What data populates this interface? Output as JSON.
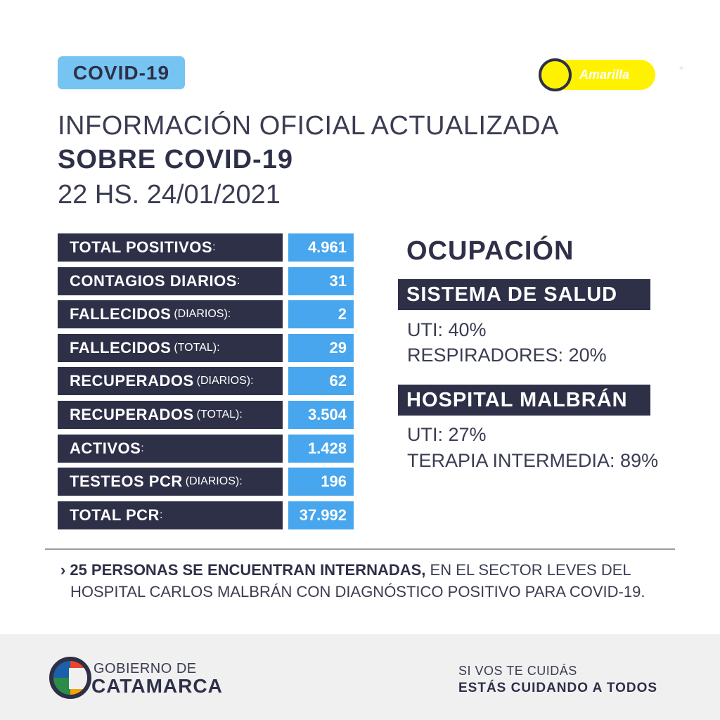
{
  "header": {
    "tag": "COVID-19",
    "phase_label": "Amarilla",
    "phase_color": "#fff200",
    "title_line1": "INFORMACIÓN OFICIAL ACTUALIZADA",
    "title_line2": "SOBRE COVID-19",
    "title_line3": "22 HS. 24/01/2021"
  },
  "stats": [
    {
      "label": "TOTAL POSITIVOS",
      "qualifier": "",
      "value": "4.961"
    },
    {
      "label": "CONTAGIOS DIARIOS",
      "qualifier": "",
      "value": "31"
    },
    {
      "label": "FALLECIDOS",
      "qualifier": "(DIARIOS)",
      "value": "2"
    },
    {
      "label": "FALLECIDOS",
      "qualifier": "(TOTAL)",
      "value": "29"
    },
    {
      "label": "RECUPERADOS",
      "qualifier": "(DIARIOS)",
      "value": "62"
    },
    {
      "label": "RECUPERADOS",
      "qualifier": "(TOTAL)",
      "value": "3.504"
    },
    {
      "label": "ACTIVOS",
      "qualifier": "",
      "value": "1.428"
    },
    {
      "label": "TESTEOS PCR",
      "qualifier": "(DIARIOS)",
      "value": "196"
    },
    {
      "label": "TOTAL PCR",
      "qualifier": "",
      "value": "37.992"
    }
  ],
  "occupancy": {
    "title": "OCUPACIÓN",
    "system_title": "SISTEMA DE SALUD",
    "system_lines": [
      "UTI: 40%",
      "RESPIRADORES: 20%"
    ],
    "hospital_title": "HOSPITAL MALBRÁN",
    "hospital_lines": [
      "UTI: 27%",
      "TERAPIA INTERMEDIA: 89%"
    ]
  },
  "note": {
    "strong": "25 PERSONAS SE ENCUENTRAN INTERNADAS,",
    "rest_line1": " EN EL SECTOR LEVES DEL",
    "line2": "HOSPITAL CARLOS MALBRÁN CON DIAGNÓSTICO POSITIVO PARA COVID-19."
  },
  "footer": {
    "gov_line1": "GOBIERNO DE",
    "gov_line2": "CATAMARCA",
    "slogan_line1": "SI VOS TE CUIDÁS",
    "slogan_line2": "ESTÁS CUIDANDO A TODOS"
  },
  "colors": {
    "navy": "#2e3048",
    "blue": "#47a6ee",
    "light_blue": "#75c4f2",
    "yellow": "#fff200"
  }
}
